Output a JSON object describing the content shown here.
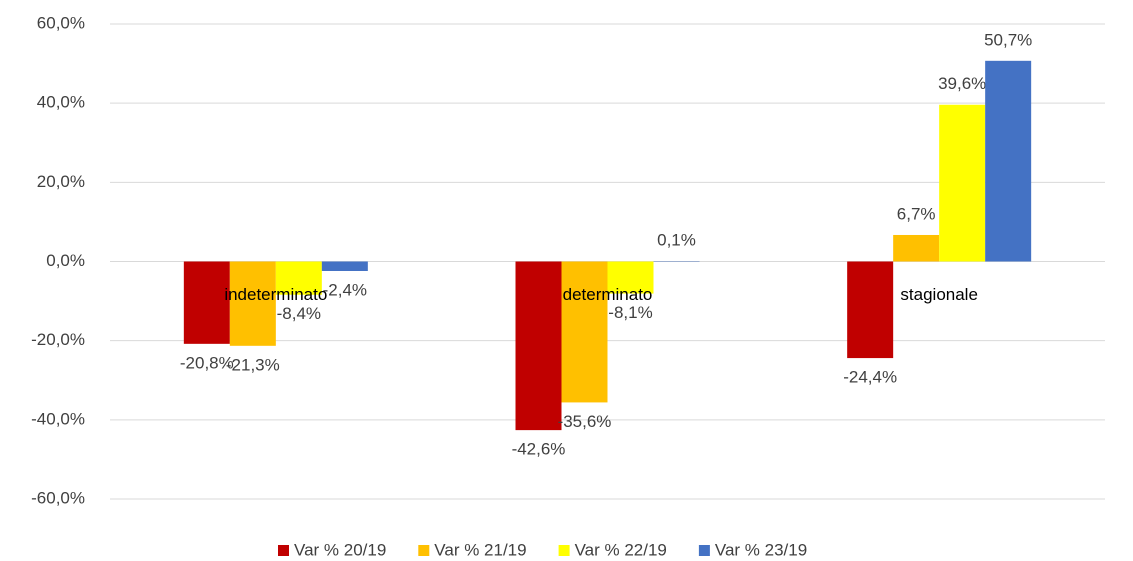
{
  "chart_data": {
    "type": "bar",
    "categories": [
      "indeterminato",
      "determinato",
      "stagionale"
    ],
    "series": [
      {
        "name": "Var % 20/19",
        "color": "#c00000",
        "values": [
          -20.8,
          -42.6,
          -24.4
        ],
        "value_labels": [
          "-20,8%",
          "-42,6%",
          "-24,4%"
        ]
      },
      {
        "name": "Var % 21/19",
        "color": "#ffc000",
        "values": [
          -21.3,
          -35.6,
          6.7
        ],
        "value_labels": [
          "-21,3%",
          "-35,6%",
          "6,7%"
        ]
      },
      {
        "name": "Var % 22/19",
        "color": "#ffff00",
        "values": [
          -8.4,
          -8.1,
          39.6
        ],
        "value_labels": [
          "-8,4%",
          "-8,1%",
          "39,6%"
        ]
      },
      {
        "name": "Var % 23/19",
        "color": "#4472c4",
        "values": [
          -2.4,
          0.1,
          50.7
        ],
        "value_labels": [
          "-2,4%",
          "0,1%",
          "50,7%"
        ]
      }
    ],
    "ylim": [
      -60,
      60
    ],
    "yticks": [
      {
        "value": -60,
        "label": "-60,0%"
      },
      {
        "value": -40,
        "label": "-40,0%"
      },
      {
        "value": -20,
        "label": "-20,0%"
      },
      {
        "value": 0,
        "label": "0,0%"
      },
      {
        "value": 20,
        "label": "20,0%"
      },
      {
        "value": 40,
        "label": "40,0%"
      },
      {
        "value": 60,
        "label": "60,0%"
      }
    ],
    "grid": true,
    "legend": "bottom"
  }
}
